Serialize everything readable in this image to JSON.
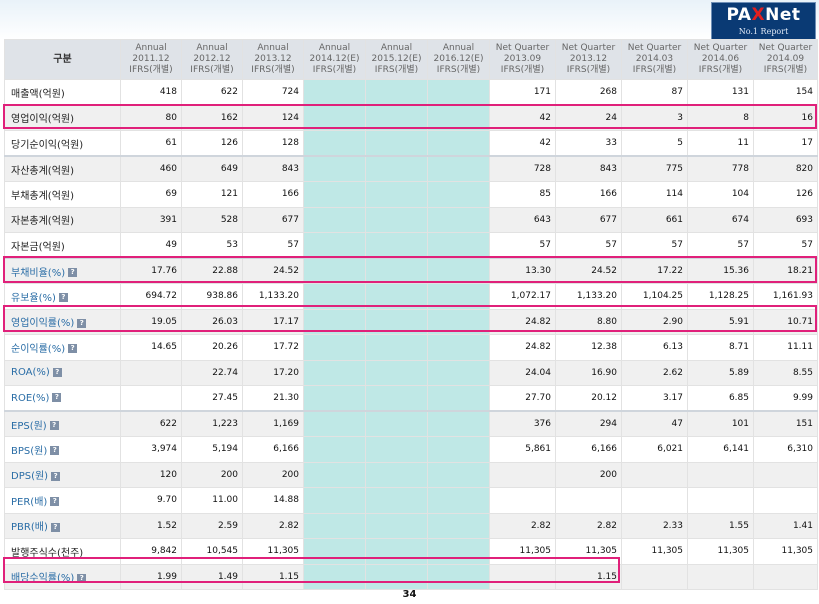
{
  "logo": {
    "main_before": "PA",
    "main_x": "X",
    "main_after": "Net",
    "sub": "No.1 Report"
  },
  "page_number": "34",
  "table": {
    "corner": "구분",
    "columns": [
      {
        "line1": "Annual",
        "line2": "2011.12",
        "line3": "IFRS(개별)"
      },
      {
        "line1": "Annual",
        "line2": "2012.12",
        "line3": "IFRS(개별)"
      },
      {
        "line1": "Annual",
        "line2": "2013.12",
        "line3": "IFRS(개별)"
      },
      {
        "line1": "Annual",
        "line2": "2014.12(E)",
        "line3": "IFRS(개별)"
      },
      {
        "line1": "Annual",
        "line2": "2015.12(E)",
        "line3": "IFRS(개별)"
      },
      {
        "line1": "Annual",
        "line2": "2016.12(E)",
        "line3": "IFRS(개별)"
      },
      {
        "line1": "Net Quarter",
        "line2": "2013.09",
        "line3": "IFRS(개별)"
      },
      {
        "line1": "Net Quarter",
        "line2": "2013.12",
        "line3": "IFRS(개별)"
      },
      {
        "line1": "Net Quarter",
        "line2": "2014.03",
        "line3": "IFRS(개별)"
      },
      {
        "line1": "Net Quarter",
        "line2": "2014.06",
        "line3": "IFRS(개별)"
      },
      {
        "line1": "Net Quarter",
        "line2": "2014.09",
        "line3": "IFRS(개별)"
      }
    ],
    "rows": [
      {
        "label": "매출액(억원)",
        "info": false,
        "values": [
          "418",
          "622",
          "724",
          "",
          "",
          "",
          "171",
          "268",
          "87",
          "131",
          "154"
        ]
      },
      {
        "label": "영업이익(억원)",
        "info": false,
        "values": [
          "80",
          "162",
          "124",
          "",
          "",
          "",
          "42",
          "24",
          "3",
          "8",
          "16"
        ]
      },
      {
        "label": "당기순이익(억원)",
        "info": false,
        "values": [
          "61",
          "126",
          "128",
          "",
          "",
          "",
          "42",
          "33",
          "5",
          "11",
          "17"
        ]
      },
      {
        "label": "자산총계(억원)",
        "info": false,
        "values": [
          "460",
          "649",
          "843",
          "",
          "",
          "",
          "728",
          "843",
          "775",
          "778",
          "820"
        ]
      },
      {
        "label": "부채총계(억원)",
        "info": false,
        "values": [
          "69",
          "121",
          "166",
          "",
          "",
          "",
          "85",
          "166",
          "114",
          "104",
          "126"
        ]
      },
      {
        "label": "자본총계(억원)",
        "info": false,
        "values": [
          "391",
          "528",
          "677",
          "",
          "",
          "",
          "643",
          "677",
          "661",
          "674",
          "693"
        ]
      },
      {
        "label": "자본금(억원)",
        "info": false,
        "values": [
          "49",
          "53",
          "57",
          "",
          "",
          "",
          "57",
          "57",
          "57",
          "57",
          "57"
        ]
      },
      {
        "label": "부채비율(%)",
        "info": true,
        "values": [
          "17.76",
          "22.88",
          "24.52",
          "",
          "",
          "",
          "13.30",
          "24.52",
          "17.22",
          "15.36",
          "18.21"
        ]
      },
      {
        "label": "유보율(%)",
        "info": true,
        "values": [
          "694.72",
          "938.86",
          "1,133.20",
          "",
          "",
          "",
          "1,072.17",
          "1,133.20",
          "1,104.25",
          "1,128.25",
          "1,161.93"
        ]
      },
      {
        "label": "영업이익률(%)",
        "info": true,
        "values": [
          "19.05",
          "26.03",
          "17.17",
          "",
          "",
          "",
          "24.82",
          "8.80",
          "2.90",
          "5.91",
          "10.71"
        ]
      },
      {
        "label": "순이익률(%)",
        "info": true,
        "values": [
          "14.65",
          "20.26",
          "17.72",
          "",
          "",
          "",
          "24.82",
          "12.38",
          "6.13",
          "8.71",
          "11.11"
        ]
      },
      {
        "label": "ROA(%)",
        "info": true,
        "values": [
          "",
          "22.74",
          "17.20",
          "",
          "",
          "",
          "24.04",
          "16.90",
          "2.62",
          "5.89",
          "8.55"
        ]
      },
      {
        "label": "ROE(%)",
        "info": true,
        "values": [
          "",
          "27.45",
          "21.30",
          "",
          "",
          "",
          "27.70",
          "20.12",
          "3.17",
          "6.85",
          "9.99"
        ]
      },
      {
        "label": "EPS(원)",
        "info": true,
        "values": [
          "622",
          "1,223",
          "1,169",
          "",
          "",
          "",
          "376",
          "294",
          "47",
          "101",
          "151"
        ]
      },
      {
        "label": "BPS(원)",
        "info": true,
        "values": [
          "3,974",
          "5,194",
          "6,166",
          "",
          "",
          "",
          "5,861",
          "6,166",
          "6,021",
          "6,141",
          "6,310"
        ]
      },
      {
        "label": "DPS(원)",
        "info": true,
        "values": [
          "120",
          "200",
          "200",
          "",
          "",
          "",
          "",
          "200",
          "",
          "",
          ""
        ]
      },
      {
        "label": "PER(배)",
        "info": true,
        "values": [
          "9.70",
          "11.00",
          "14.88",
          "",
          "",
          "",
          "",
          "",
          "",
          "",
          ""
        ]
      },
      {
        "label": "PBR(배)",
        "info": true,
        "values": [
          "1.52",
          "2.59",
          "2.82",
          "",
          "",
          "",
          "2.82",
          "2.82",
          "2.33",
          "1.55",
          "1.41"
        ]
      },
      {
        "label": "발행주식수(천주)",
        "info": false,
        "values": [
          "9,842",
          "10,545",
          "11,305",
          "",
          "",
          "",
          "11,305",
          "11,305",
          "11,305",
          "11,305",
          "11,305"
        ]
      },
      {
        "label": "배당수익률(%)",
        "info": true,
        "values": [
          "1.99",
          "1.49",
          "1.15",
          "",
          "",
          "",
          "",
          "1.15",
          "",
          "",
          ""
        ]
      }
    ]
  },
  "colors": {
    "highlight": "#e0207a",
    "estimate_fill": "#bfe8e6",
    "header_fill": "#dfe3e8",
    "label_link": "#2a6da6"
  }
}
